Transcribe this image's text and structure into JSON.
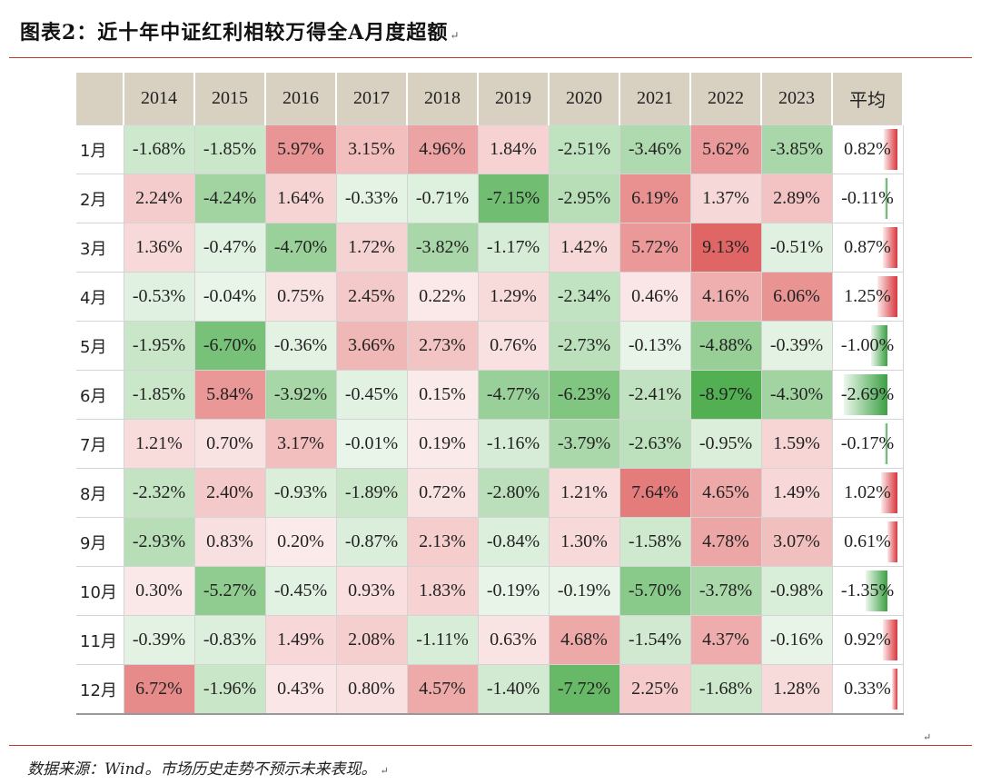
{
  "title": "图表2：近十年中证红利相较万得全A月度超额",
  "title_mark": "↵",
  "source": "数据来源：Wind。市场历史走势不预示未来表现。",
  "source_mark": "↵",
  "corner_mark": "↵",
  "colors": {
    "header_bg": "#d8d0c0",
    "positive": "#e06666",
    "negative": "#4fae4f",
    "rule": "#c0392b"
  },
  "table": {
    "header": [
      "2014",
      "2015",
      "2016",
      "2017",
      "2018",
      "2019",
      "2020",
      "2021",
      "2022",
      "2023",
      "平均"
    ],
    "rows": [
      {
        "month": "1月",
        "values": [
          "-1.68%",
          "-1.85%",
          "5.97%",
          "3.15%",
          "4.96%",
          "1.84%",
          "-2.51%",
          "-3.46%",
          "5.62%",
          "-3.85%"
        ],
        "avg": "0.82%"
      },
      {
        "month": "2月",
        "values": [
          "2.24%",
          "-4.24%",
          "1.64%",
          "-0.33%",
          "-0.71%",
          "-7.15%",
          "-2.95%",
          "6.19%",
          "1.37%",
          "2.89%"
        ],
        "avg": "-0.11%"
      },
      {
        "month": "3月",
        "values": [
          "1.36%",
          "-0.47%",
          "-4.70%",
          "1.72%",
          "-3.82%",
          "-1.17%",
          "1.42%",
          "5.72%",
          "9.13%",
          "-0.51%"
        ],
        "avg": "0.87%"
      },
      {
        "month": "4月",
        "values": [
          "-0.53%",
          "-0.04%",
          "0.75%",
          "2.45%",
          "0.22%",
          "1.29%",
          "-2.34%",
          "0.46%",
          "4.16%",
          "6.06%"
        ],
        "avg": "1.25%"
      },
      {
        "month": "5月",
        "values": [
          "-1.95%",
          "-6.70%",
          "-0.36%",
          "3.66%",
          "2.73%",
          "0.76%",
          "-2.73%",
          "-0.13%",
          "-4.88%",
          "-0.39%"
        ],
        "avg": "-1.00%"
      },
      {
        "month": "6月",
        "values": [
          "-1.85%",
          "5.84%",
          "-3.92%",
          "-0.45%",
          "0.15%",
          "-4.77%",
          "-6.23%",
          "-2.41%",
          "-8.97%",
          "-4.30%"
        ],
        "avg": "-2.69%"
      },
      {
        "month": "7月",
        "values": [
          "1.21%",
          "0.70%",
          "3.17%",
          "-0.01%",
          "0.19%",
          "-1.16%",
          "-3.79%",
          "-2.63%",
          "-0.95%",
          "1.59%"
        ],
        "avg": "-0.17%"
      },
      {
        "month": "8月",
        "values": [
          "-2.32%",
          "2.40%",
          "-0.93%",
          "-1.89%",
          "0.72%",
          "-2.80%",
          "1.21%",
          "7.64%",
          "4.65%",
          "1.49%"
        ],
        "avg": "1.02%"
      },
      {
        "month": "9月",
        "values": [
          "-2.93%",
          "0.83%",
          "0.20%",
          "-0.87%",
          "2.13%",
          "-0.84%",
          "1.30%",
          "-1.58%",
          "4.78%",
          "3.07%"
        ],
        "avg": "0.61%"
      },
      {
        "month": "10月",
        "values": [
          "0.30%",
          "-5.27%",
          "-0.45%",
          "0.93%",
          "1.83%",
          "-0.19%",
          "-0.19%",
          "-5.70%",
          "-3.78%",
          "-0.98%"
        ],
        "avg": "-1.35%"
      },
      {
        "month": "11月",
        "values": [
          "-0.39%",
          "-0.83%",
          "1.49%",
          "2.08%",
          "-1.11%",
          "0.63%",
          "4.68%",
          "-1.54%",
          "4.37%",
          "-0.16%"
        ],
        "avg": "0.92%"
      },
      {
        "month": "12月",
        "values": [
          "6.72%",
          "-1.96%",
          "0.43%",
          "0.80%",
          "4.57%",
          "-1.40%",
          "-7.72%",
          "2.25%",
          "-1.68%",
          "1.28%"
        ],
        "avg": "0.33%"
      }
    ]
  }
}
